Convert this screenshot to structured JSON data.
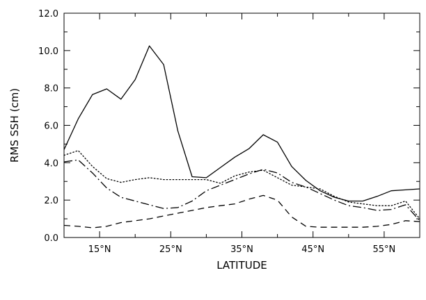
{
  "chart_data": {
    "type": "line",
    "title": "",
    "xlabel": "LATITUDE",
    "ylabel": "RMS SSH (cm)",
    "xlim": [
      10,
      60
    ],
    "ylim": [
      0,
      12
    ],
    "x_ticks": [
      15,
      25,
      35,
      45,
      55
    ],
    "x_tick_labels": [
      "15°N",
      "25°N",
      "35°N",
      "45°N",
      "55°N"
    ],
    "y_ticks": [
      0,
      2,
      4,
      6,
      8,
      10,
      12
    ],
    "y_tick_labels": [
      "0.0",
      "2.0",
      "4.0",
      "6.0",
      "8.0",
      "10.0",
      "12.0"
    ],
    "grid": false,
    "series": [
      {
        "style": "solid",
        "x": [
          10,
          12,
          14,
          16,
          18,
          20,
          22,
          24,
          26,
          28,
          30,
          32,
          34,
          36,
          38,
          40,
          42,
          44,
          46,
          48,
          50,
          52,
          54,
          56,
          58,
          60
        ],
        "y": [
          4.7,
          6.35,
          7.65,
          7.95,
          7.4,
          8.45,
          10.25,
          9.25,
          5.7,
          3.25,
          3.2,
          3.75,
          4.3,
          4.75,
          5.5,
          5.1,
          3.8,
          3.05,
          2.5,
          2.15,
          1.95,
          1.95,
          2.2,
          2.5,
          2.55,
          2.6
        ]
      },
      {
        "style": "dotted",
        "x": [
          10,
          12,
          14,
          16,
          18,
          20,
          22,
          24,
          26,
          28,
          30,
          32,
          34,
          36,
          38,
          40,
          42,
          44,
          46,
          48,
          50,
          52,
          54,
          56,
          58,
          60
        ],
        "y": [
          4.4,
          4.65,
          3.8,
          3.15,
          2.95,
          3.1,
          3.2,
          3.1,
          3.1,
          3.1,
          3.1,
          2.9,
          3.3,
          3.5,
          3.6,
          3.2,
          2.8,
          2.7,
          2.6,
          2.2,
          1.9,
          1.8,
          1.7,
          1.7,
          1.95,
          1.0
        ]
      },
      {
        "style": "dash-dot",
        "x": [
          10,
          12,
          14,
          16,
          18,
          20,
          22,
          24,
          26,
          28,
          30,
          32,
          34,
          36,
          38,
          40,
          42,
          44,
          46,
          48,
          50,
          52,
          54,
          56,
          58,
          60
        ],
        "y": [
          4.05,
          4.15,
          3.45,
          2.65,
          2.15,
          1.95,
          1.75,
          1.55,
          1.6,
          1.95,
          2.5,
          2.8,
          3.1,
          3.4,
          3.65,
          3.45,
          2.95,
          2.7,
          2.35,
          2.0,
          1.7,
          1.6,
          1.45,
          1.5,
          1.75,
          0.9
        ]
      },
      {
        "style": "dashed",
        "x": [
          10,
          12,
          14,
          16,
          18,
          20,
          22,
          24,
          26,
          28,
          30,
          32,
          34,
          36,
          38,
          40,
          42,
          44,
          46,
          48,
          50,
          52,
          54,
          56,
          58,
          60
        ],
        "y": [
          0.65,
          0.6,
          0.52,
          0.6,
          0.8,
          0.9,
          1.0,
          1.15,
          1.3,
          1.45,
          1.6,
          1.7,
          1.8,
          2.05,
          2.25,
          2.0,
          1.1,
          0.6,
          0.55,
          0.55,
          0.55,
          0.55,
          0.6,
          0.7,
          0.9,
          0.85
        ]
      }
    ]
  }
}
